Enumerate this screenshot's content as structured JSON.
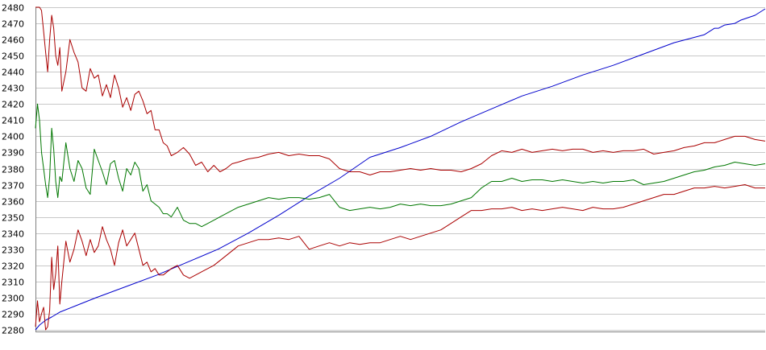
{
  "chart_data": {
    "type": "line",
    "title": "",
    "xlabel": "",
    "ylabel": "",
    "ylim": [
      2280,
      2480
    ],
    "xlim": [
      0,
      360
    ],
    "y_ticks": [
      "2280",
      "2290",
      "2300",
      "2310",
      "2320",
      "2330",
      "2340",
      "2350",
      "2360",
      "2370",
      "2380",
      "2390",
      "2400",
      "2410",
      "2420",
      "2430",
      "2440",
      "2450",
      "2460",
      "2470",
      "2480"
    ],
    "grid": true,
    "legend": "none",
    "series": [
      {
        "color": "#0000cc",
        "x": [
          0,
          2,
          5,
          8,
          12,
          20,
          30,
          45,
          60,
          75,
          90,
          105,
          120,
          135,
          150,
          165,
          180,
          195,
          210,
          225,
          240,
          255,
          270,
          285,
          300,
          315,
          330,
          335,
          337,
          340,
          345,
          348,
          355,
          360
        ],
        "y": [
          2280,
          2283,
          2286,
          2288,
          2291,
          2295,
          2300,
          2307,
          2314,
          2322,
          2330,
          2340,
          2351,
          2363,
          2374,
          2387,
          2393,
          2400,
          2409,
          2417,
          2425,
          2431,
          2438,
          2444,
          2451,
          2458,
          2463,
          2467,
          2467,
          2469,
          2470,
          2472,
          2475,
          2479
        ]
      },
      {
        "color": "#aa0000",
        "x": [
          0,
          2,
          3,
          4,
          5,
          6,
          7,
          8,
          9,
          10,
          11,
          12,
          13,
          15,
          17,
          19,
          21,
          23,
          25,
          27,
          29,
          31,
          33,
          35,
          37,
          39,
          41,
          43,
          45,
          47,
          49,
          51,
          53,
          55,
          57,
          59,
          61,
          63,
          65,
          67,
          70,
          73,
          76,
          79,
          82,
          85,
          88,
          91,
          94,
          97,
          100,
          105,
          110,
          115,
          120,
          125,
          130,
          135,
          140,
          145,
          150,
          155,
          160,
          165,
          170,
          175,
          180,
          185,
          190,
          195,
          200,
          205,
          210,
          215,
          220,
          225,
          230,
          235,
          240,
          245,
          250,
          255,
          260,
          265,
          270,
          275,
          280,
          285,
          290,
          295,
          300,
          305,
          310,
          315,
          320,
          325,
          330,
          335,
          340,
          345,
          350,
          355,
          360
        ],
        "y": [
          2480,
          2480,
          2478,
          2465,
          2452,
          2440,
          2460,
          2475,
          2467,
          2450,
          2444,
          2455,
          2428,
          2440,
          2460,
          2452,
          2446,
          2430,
          2428,
          2442,
          2436,
          2438,
          2425,
          2432,
          2424,
          2438,
          2430,
          2418,
          2424,
          2416,
          2426,
          2428,
          2422,
          2414,
          2416,
          2404,
          2404,
          2396,
          2394,
          2388,
          2390,
          2393,
          2389,
          2382,
          2384,
          2378,
          2382,
          2378,
          2380,
          2383,
          2384,
          2386,
          2387,
          2389,
          2390,
          2388,
          2389,
          2388,
          2388,
          2386,
          2380,
          2378,
          2378,
          2376,
          2378,
          2378,
          2379,
          2380,
          2379,
          2380,
          2379,
          2379,
          2378,
          2380,
          2383,
          2388,
          2391,
          2390,
          2392,
          2390,
          2391,
          2392,
          2391,
          2392,
          2392,
          2390,
          2391,
          2390,
          2391,
          2391,
          2392,
          2389,
          2390,
          2391,
          2393,
          2394,
          2396,
          2396,
          2398,
          2400,
          2400,
          2398,
          2397
        ]
      },
      {
        "color": "#007700",
        "x": [
          0,
          1,
          2,
          3,
          4,
          5,
          6,
          7,
          8,
          9,
          10,
          11,
          12,
          13,
          15,
          17,
          19,
          21,
          23,
          25,
          27,
          29,
          31,
          33,
          35,
          37,
          39,
          41,
          43,
          45,
          47,
          49,
          51,
          53,
          55,
          57,
          59,
          61,
          63,
          65,
          67,
          70,
          73,
          76,
          79,
          82,
          85,
          88,
          91,
          94,
          97,
          100,
          105,
          110,
          115,
          120,
          125,
          130,
          135,
          140,
          145,
          150,
          155,
          160,
          165,
          170,
          175,
          180,
          185,
          190,
          195,
          200,
          205,
          210,
          215,
          220,
          225,
          230,
          235,
          240,
          245,
          250,
          255,
          260,
          265,
          270,
          275,
          280,
          285,
          290,
          295,
          300,
          305,
          310,
          315,
          320,
          325,
          330,
          335,
          340,
          345,
          350,
          355,
          360
        ],
        "y": [
          2405,
          2420,
          2410,
          2390,
          2380,
          2370,
          2362,
          2375,
          2405,
          2392,
          2372,
          2362,
          2375,
          2372,
          2396,
          2380,
          2372,
          2385,
          2380,
          2368,
          2364,
          2392,
          2385,
          2378,
          2370,
          2383,
          2385,
          2374,
          2366,
          2380,
          2376,
          2384,
          2380,
          2366,
          2370,
          2360,
          2358,
          2356,
          2352,
          2352,
          2350,
          2356,
          2348,
          2346,
          2346,
          2344,
          2346,
          2348,
          2350,
          2352,
          2354,
          2356,
          2358,
          2360,
          2362,
          2361,
          2362,
          2362,
          2361,
          2362,
          2364,
          2356,
          2354,
          2355,
          2356,
          2355,
          2356,
          2358,
          2357,
          2358,
          2357,
          2357,
          2358,
          2360,
          2362,
          2368,
          2372,
          2372,
          2374,
          2372,
          2373,
          2373,
          2372,
          2373,
          2372,
          2371,
          2372,
          2371,
          2372,
          2372,
          2373,
          2370,
          2371,
          2372,
          2374,
          2376,
          2378,
          2379,
          2381,
          2382,
          2384,
          2383,
          2382,
          2383
        ]
      },
      {
        "color": "#aa0000",
        "x": [
          0,
          1,
          2,
          3,
          4,
          5,
          6,
          7,
          8,
          9,
          10,
          11,
          12,
          13,
          15,
          17,
          19,
          21,
          23,
          25,
          27,
          29,
          31,
          33,
          35,
          37,
          39,
          41,
          43,
          45,
          47,
          49,
          51,
          53,
          55,
          57,
          59,
          61,
          63,
          65,
          67,
          70,
          73,
          76,
          79,
          82,
          85,
          88,
          91,
          94,
          97,
          100,
          105,
          110,
          115,
          120,
          125,
          130,
          135,
          140,
          145,
          150,
          155,
          160,
          165,
          170,
          175,
          180,
          185,
          190,
          195,
          200,
          205,
          210,
          215,
          220,
          225,
          230,
          235,
          240,
          245,
          250,
          255,
          260,
          265,
          270,
          275,
          280,
          285,
          290,
          295,
          300,
          305,
          310,
          315,
          320,
          325,
          330,
          335,
          340,
          345,
          350,
          355,
          360
        ],
        "y": [
          2282,
          2298,
          2285,
          2290,
          2294,
          2280,
          2282,
          2292,
          2325,
          2305,
          2315,
          2332,
          2296,
          2310,
          2335,
          2322,
          2330,
          2342,
          2335,
          2326,
          2336,
          2328,
          2332,
          2344,
          2336,
          2330,
          2320,
          2334,
          2342,
          2332,
          2336,
          2340,
          2330,
          2320,
          2322,
          2316,
          2318,
          2314,
          2314,
          2316,
          2318,
          2320,
          2314,
          2312,
          2314,
          2316,
          2318,
          2320,
          2323,
          2326,
          2329,
          2332,
          2334,
          2336,
          2336,
          2337,
          2336,
          2338,
          2330,
          2332,
          2334,
          2332,
          2334,
          2333,
          2334,
          2334,
          2336,
          2338,
          2336,
          2338,
          2340,
          2342,
          2346,
          2350,
          2354,
          2354,
          2355,
          2355,
          2356,
          2354,
          2355,
          2354,
          2355,
          2356,
          2355,
          2354,
          2356,
          2355,
          2355,
          2356,
          2358,
          2360,
          2362,
          2364,
          2364,
          2366,
          2368,
          2368,
          2369,
          2368,
          2369,
          2370,
          2368,
          2368
        ]
      }
    ]
  }
}
